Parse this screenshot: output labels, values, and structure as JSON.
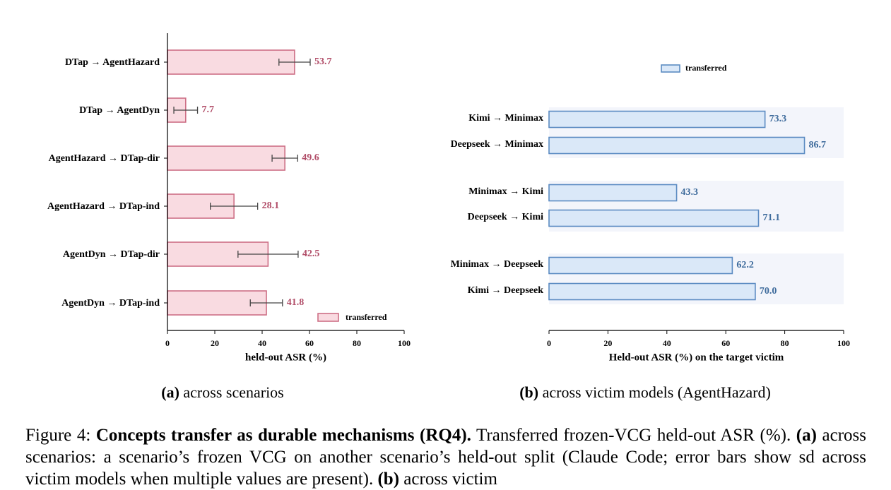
{
  "chart_data": [
    {
      "type": "bar",
      "orientation": "horizontal",
      "categories": [
        "DTap → AgentHazard",
        "DTap → AgentDyn",
        "AgentHazard → DTap-dir",
        "AgentHazard → DTap-ind",
        "AgentDyn → DTap-dir",
        "AgentDyn → DTap-ind"
      ],
      "series": [
        {
          "name": "transferred",
          "values": [
            53.7,
            7.7,
            49.6,
            28.1,
            42.5,
            41.8
          ],
          "error": [
            6.6,
            5.0,
            5.4,
            10.0,
            12.7,
            6.8
          ]
        }
      ],
      "value_labels": [
        "53.7",
        "7.7",
        "49.6",
        "28.1",
        "42.5",
        "41.8"
      ],
      "xlabel": "held-out ASR (%)",
      "xlim": [
        0,
        100
      ],
      "xticks": [
        "0",
        "20",
        "40",
        "60",
        "80",
        "100"
      ],
      "legend": "bottom-right",
      "grid": false,
      "caption_tag": "(a)",
      "caption": "across scenarios",
      "colors": {
        "fill": "#f9dbe1",
        "edge": "#cd6f86",
        "label": "#b14d68"
      }
    },
    {
      "type": "bar",
      "orientation": "horizontal",
      "categories": [
        "Kimi → Minimax",
        "Deepseek → Minimax",
        "Minimax → Kimi",
        "Deepseek → Kimi",
        "Minimax → Deepseek",
        "Kimi → Deepseek"
      ],
      "groups": [
        [
          0,
          1
        ],
        [
          2,
          3
        ],
        [
          4,
          5
        ]
      ],
      "series": [
        {
          "name": "transferred",
          "values": [
            73.3,
            86.7,
            43.3,
            71.1,
            62.2,
            70.0
          ]
        }
      ],
      "value_labels": [
        "73.3",
        "86.7",
        "43.3",
        "71.1",
        "62.2",
        "70.0"
      ],
      "xlabel": "Held-out ASR (%) on the target victim",
      "xlim": [
        0,
        100
      ],
      "xticks": [
        "0",
        "20",
        "40",
        "60",
        "80",
        "100"
      ],
      "legend": "top-center",
      "grid": false,
      "caption_tag": "(b)",
      "caption": "across victim models (AgentHazard)",
      "colors": {
        "fill": "#dae8f8",
        "edge": "#5b8bc2",
        "label": "#3e6b9c",
        "group_band": "#f3f5fb"
      }
    }
  ],
  "figure_caption": {
    "prefix": "Figure 4:",
    "title": "Concepts transfer as durable mechanisms (RQ4).",
    "sentence1": "Transferred frozen-VCG held-out ASR (%).",
    "a_tag": "(a)",
    "a_text": "across scenarios: a scenario’s frozen VCG on another scenario’s held-out split (Claude Code; error bars show sd across victim models when multiple values are present).",
    "b_tag": "(b)",
    "b_text": "across victim"
  }
}
